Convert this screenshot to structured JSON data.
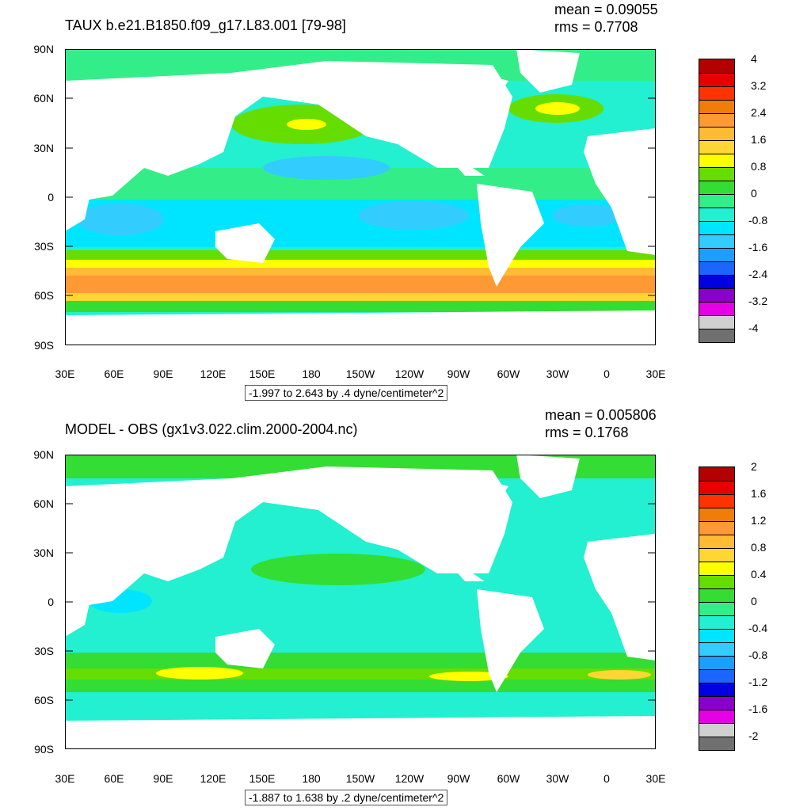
{
  "chart_data": [
    {
      "type": "heatmap",
      "title": "TAUX b.e21.B1850.f09_g17.L83.001 [79-98]",
      "stats": {
        "mean": "mean = 0.09055",
        "rms": "rms = 0.7708"
      },
      "y_ticks": [
        "90N",
        "60N",
        "30N",
        "0",
        "30S",
        "60S",
        "90S"
      ],
      "x_ticks": [
        "30E",
        "60E",
        "90E",
        "120E",
        "150E",
        "180",
        "150W",
        "120W",
        "90W",
        "60W",
        "30W",
        "0",
        "30E"
      ],
      "colorbar": {
        "labels": [
          "4",
          "3.2",
          "2.4",
          "1.6",
          "0.8",
          "0",
          "-0.8",
          "-1.6",
          "-2.4",
          "-3.2",
          "-4"
        ],
        "colors": [
          "#b30000",
          "#e80000",
          "#ff3300",
          "#f07c0a",
          "#ff9933",
          "#ffbb33",
          "#ffd633",
          "#ffff00",
          "#66dd00",
          "#33dd33",
          "#33ee88",
          "#22f0d0",
          "#00e5ff",
          "#33ccff",
          "#1a9fff",
          "#1a66ff",
          "#0000e0",
          "#8800cc",
          "#e600e6",
          "#d0d0d0",
          "#707070"
        ]
      },
      "range_note": "-1.997 to 2.643 by .4 dyne/centimeter^2"
    },
    {
      "type": "heatmap",
      "title": "MODEL - OBS (gx1v3.022.clim.2000-2004.nc)",
      "stats": {
        "mean": "mean = 0.005806",
        "rms": "rms = 0.1768"
      },
      "y_ticks": [
        "90N",
        "60N",
        "30N",
        "0",
        "30S",
        "60S",
        "90S"
      ],
      "x_ticks": [
        "30E",
        "60E",
        "90E",
        "120E",
        "150E",
        "180",
        "150W",
        "120W",
        "90W",
        "60W",
        "30W",
        "0",
        "30E"
      ],
      "colorbar": {
        "labels": [
          "2",
          "1.6",
          "1.2",
          "0.8",
          "0.4",
          "0",
          "-0.4",
          "-0.8",
          "-1.2",
          "-1.6",
          "-2"
        ],
        "colors": [
          "#b30000",
          "#e80000",
          "#ff3300",
          "#f07c0a",
          "#ff9933",
          "#ffbb33",
          "#ffd633",
          "#ffff00",
          "#66dd00",
          "#33dd33",
          "#33ee88",
          "#22f0d0",
          "#00e5ff",
          "#33ccff",
          "#1a9fff",
          "#1a66ff",
          "#0000e0",
          "#8800cc",
          "#e600e6",
          "#d0d0d0",
          "#707070"
        ]
      },
      "range_note": "-1.887 to 1.638 by .2 dyne/centimeter^2"
    }
  ]
}
